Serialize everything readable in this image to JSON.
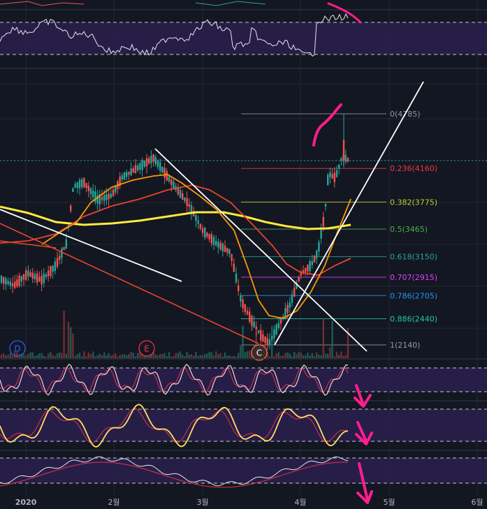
{
  "chart_data": {
    "type": "candlestick",
    "x_axis_labels": [
      "2020",
      "2월",
      "3월",
      "4월",
      "5월",
      "6월"
    ],
    "fibonacci_levels": [
      {
        "ratio": "0",
        "price": 4785,
        "label": "0(4785)",
        "color": "#9598a1"
      },
      {
        "ratio": "0.236",
        "price": 4160,
        "label": "0.236(4160)",
        "color": "#f23645"
      },
      {
        "ratio": "0.382",
        "price": 3775,
        "label": "0.382(3775)",
        "color": "#c0ca33"
      },
      {
        "ratio": "0.5",
        "price": 3465,
        "label": "0.5(3465)",
        "color": "#4caf50"
      },
      {
        "ratio": "0.618",
        "price": 3150,
        "label": "0.618(3150)",
        "color": "#26a69a"
      },
      {
        "ratio": "0.707",
        "price": 2915,
        "label": "0.707(2915)",
        "color": "#e040fb"
      },
      {
        "ratio": "0.786",
        "price": 2705,
        "label": "0.786(2705)",
        "color": "#2196f3"
      },
      {
        "ratio": "0.886",
        "price": 2440,
        "label": "0.886(2440)",
        "color": "#26c6a6"
      },
      {
        "ratio": "1",
        "price": 2140,
        "label": "1(2140)",
        "color": "#9598a1"
      }
    ],
    "event_markers": [
      {
        "letter": "D",
        "color": "#2962ff"
      },
      {
        "letter": "E",
        "color": "#f23645"
      },
      {
        "letter": "C",
        "color": "#ff7043"
      }
    ],
    "colors": {
      "up": "#26a69a",
      "down": "#ef5350",
      "ma_fast": "#ff9800",
      "ma_mid": "#e8452c",
      "ma_slow": "#ffeb3b",
      "trendline": "#ffffff",
      "annotation": "#ff1e8c",
      "panel_band": "#2a1f4d"
    }
  }
}
